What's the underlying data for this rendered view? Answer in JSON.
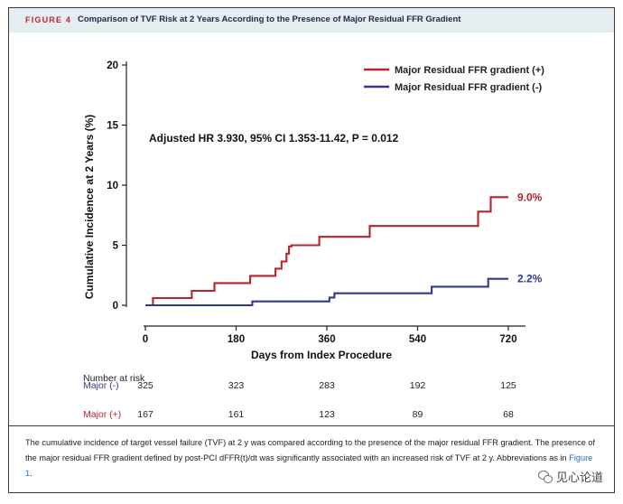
{
  "figure": {
    "label": "FIGURE 4",
    "title": "Comparison of TVF Risk at 2 Years According to the Presence of Major Residual FFR Gradient"
  },
  "chart_data": {
    "type": "line",
    "title": "",
    "xlabel": "Days from Index Procedure",
    "ylabel": "Cumulative Incidence at 2 Years (%)",
    "xlim": [
      0,
      720
    ],
    "ylim": [
      0,
      20
    ],
    "xticks": [
      0,
      180,
      360,
      540,
      720
    ],
    "yticks": [
      0,
      5,
      10,
      15,
      20
    ],
    "grid": false,
    "legend_position": "top-right",
    "annotation": "Adjusted HR 3.930, 95% CI 1.353-11.42, P = 0.012",
    "series": [
      {
        "name": "Major Residual FFR gradient (+)",
        "color": "#b8232f",
        "end_label": "9.0%",
        "x": [
          0,
          15,
          15,
          92,
          92,
          137,
          137,
          208,
          208,
          258,
          258,
          270,
          270,
          280,
          280,
          285,
          285,
          290,
          290,
          345,
          345,
          445,
          445,
          660,
          660,
          685,
          685,
          720
        ],
        "y": [
          0,
          0,
          0.6,
          0.6,
          1.2,
          1.2,
          1.85,
          1.85,
          2.45,
          2.45,
          3.05,
          3.05,
          3.65,
          3.65,
          4.3,
          4.3,
          4.9,
          4.9,
          5.0,
          5.0,
          5.7,
          5.7,
          6.6,
          6.6,
          7.8,
          7.8,
          9.0,
          9.0
        ]
      },
      {
        "name": "Major Residual FFR gradient (-)",
        "color": "#323791",
        "end_label": "2.2%",
        "x": [
          0,
          212,
          212,
          365,
          365,
          375,
          375,
          568,
          568,
          680,
          680,
          720
        ],
        "y": [
          0,
          0,
          0.32,
          0.32,
          0.65,
          0.65,
          1.0,
          1.0,
          1.55,
          1.55,
          2.2,
          2.2
        ]
      }
    ],
    "risk_table": {
      "header": "Number at risk",
      "times": [
        0,
        180,
        360,
        540,
        720
      ],
      "rows": [
        {
          "label": "Major (-)",
          "color": "#323791",
          "values": [
            "325",
            "323",
            "283",
            "192",
            "125"
          ]
        },
        {
          "label": "Major (+)",
          "color": "#b8232f",
          "values": [
            "167",
            "161",
            "123",
            "89",
            "68"
          ]
        }
      ]
    }
  },
  "caption": {
    "text": "The cumulative incidence of target vessel failure (TVF) at 2 y was compared according to the presence of the major residual FFR gradient. The presence of the major residual FFR gradient defined by post-PCI dFFR(t)/dt was significantly associated with an increased risk of TVF at 2 y. Abbreviations as in ",
    "ref": "Figure 1",
    "end": "."
  },
  "watermark": {
    "text": "见心论道",
    "icon": "wechat-icon"
  }
}
